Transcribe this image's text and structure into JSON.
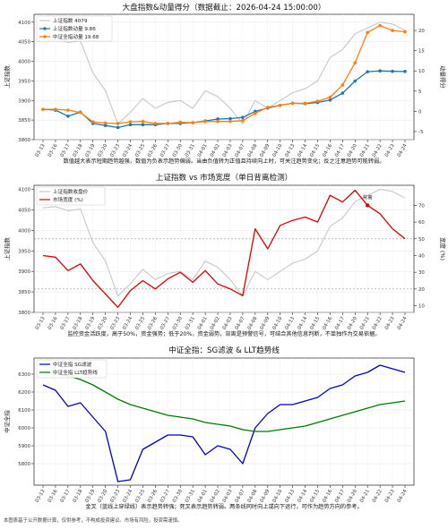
{
  "footer_note": "本图表基于公开数据计算，仅供参考，不构成投资建议。市场有风险，投资需谨慎。",
  "dates": [
    "03-13",
    "03-16",
    "03-17",
    "03-18",
    "03-19",
    "03-20",
    "03-23",
    "03-24",
    "03-25",
    "03-26",
    "03-27",
    "03-30",
    "03-31",
    "04-01",
    "04-02",
    "04-03",
    "04-07",
    "04-08",
    "04-09",
    "04-10",
    "04-13",
    "04-14",
    "04-15",
    "04-16",
    "04-17",
    "04-20",
    "04-21",
    "04-22",
    "04-23",
    "04-24"
  ],
  "colors": {
    "gray": "#c8c8c8",
    "blue": "#1f77b4",
    "orange": "#ff7f0e",
    "red": "#e00000",
    "navy": "#0000cc",
    "green": "#007a00"
  },
  "chart_data": [
    {
      "type": "line",
      "title": "大盘指数&动量得分（数据截止：2026-04-24 15:00:00）",
      "ylabel": "上证指数",
      "y2label": "动量得分",
      "caption": "数值越大表示短期趋势越强，数值为负表示趋势偏弱。当由负值转为正值且持续向上时，可关注趋势变化；反之注意趋势可能转弱。",
      "ylim": [
        3800,
        4120
      ],
      "yticks": [
        3800,
        3850,
        3900,
        3950,
        4000,
        4050,
        4100
      ],
      "y2lim": [
        -7,
        24
      ],
      "y2ticks": [
        -5,
        0,
        5,
        10,
        15,
        20
      ],
      "legend_position": "top-left",
      "series": [
        {
          "name": "上证指数 4079",
          "axis": "left",
          "color": "#c8c8c8",
          "values": [
            4055,
            4058,
            4048,
            4052,
            3970,
            3925,
            3840,
            3870,
            3905,
            3880,
            3895,
            3900,
            3880,
            3925,
            3910,
            3880,
            3840,
            3900,
            3880,
            3900,
            3920,
            3930,
            3950,
            4010,
            4030,
            4070,
            4085,
            4100,
            4095,
            4079
          ]
        },
        {
          "name": "上证指数动量 9.86",
          "axis": "right",
          "color": "#1f77b4",
          "values": [
            0.5,
            0.3,
            -1.2,
            -0.2,
            -3.0,
            -3.5,
            -4.0,
            -3.3,
            -3.3,
            -3.3,
            -3.0,
            -3.0,
            -2.8,
            -2.4,
            -1.9,
            -1.8,
            -1.5,
            0.0,
            0.8,
            1.5,
            2.0,
            1.9,
            2.2,
            2.8,
            4.5,
            7.5,
            9.8,
            10.0,
            9.9,
            9.86
          ]
        },
        {
          "name": "中证全指动量 19.68",
          "axis": "right",
          "color": "#ff7f0e",
          "values": [
            0.5,
            0.5,
            0.3,
            -0.3,
            -2.6,
            -2.9,
            -3.0,
            -2.6,
            -2.5,
            -3.0,
            -3.0,
            -2.7,
            -2.8,
            -2.5,
            -2.5,
            -2.5,
            -2.3,
            -0.5,
            1.0,
            1.5,
            2.0,
            2.0,
            2.5,
            3.5,
            6.5,
            12.0,
            19.5,
            21.2,
            20.0,
            19.68
          ]
        }
      ]
    },
    {
      "type": "line",
      "title": "上证指数 vs 市场宽度（单日背离检测）",
      "ylabel": "上证指数",
      "y2label": "宽度 (%)",
      "caption": "监控资金活跃度，高于50%，资金强势；低于20%，资金弱势。背离是预警信号，可结合其他信息判断，不单独作为交易依据。",
      "ylim": [
        3800,
        4110
      ],
      "yticks": [
        3800,
        3850,
        3900,
        3950,
        4000,
        4050,
        4100
      ],
      "y2lim": [
        6,
        82
      ],
      "y2ticks": [
        10,
        20,
        30,
        40,
        50,
        60,
        70
      ],
      "ref_lines": [
        20,
        50
      ],
      "legend_position": "top-left",
      "annotations": [
        {
          "label": "背离",
          "index": 26
        }
      ],
      "series": [
        {
          "name": "上证指数收盘价",
          "axis": "left",
          "color": "#c8c8c8",
          "values": [
            4055,
            4058,
            4048,
            4052,
            3970,
            3925,
            3840,
            3870,
            3905,
            3880,
            3895,
            3900,
            3880,
            3925,
            3910,
            3880,
            3840,
            3900,
            3880,
            3900,
            3920,
            3930,
            3950,
            4010,
            4030,
            4070,
            4085,
            4100,
            4095,
            4079
          ]
        },
        {
          "name": "市场宽度 (%)",
          "axis": "right",
          "color": "#e00000",
          "values": [
            40,
            39,
            31,
            35,
            25,
            17,
            9,
            19,
            25,
            20,
            26,
            30,
            24,
            31,
            23,
            20,
            16,
            56,
            44,
            58,
            61,
            63,
            60,
            76,
            72,
            79,
            70,
            65,
            56,
            50
          ]
        }
      ]
    },
    {
      "type": "line",
      "title": "中证全指：SG滤波 & LLT趋势线",
      "ylabel": "中证全指",
      "caption": "金叉（蓝线上穿绿线）表示趋势转强；死叉表示趋势转弱。两条线同时向上或向下运行，可作为趋势方向的参考。",
      "ylim": [
        5680,
        6390
      ],
      "yticks": [
        5800,
        5900,
        6000,
        6100,
        6200,
        6300
      ],
      "legend_position": "top-left",
      "series": [
        {
          "name": "中证全指 SG滤波",
          "axis": "left",
          "color": "#0000cc",
          "values": [
            6240,
            6210,
            6120,
            6140,
            6060,
            5980,
            5700,
            5710,
            5880,
            5920,
            5960,
            5960,
            5950,
            5850,
            5900,
            5880,
            5800,
            6000,
            6080,
            6130,
            6130,
            6150,
            6170,
            6220,
            6240,
            6290,
            6310,
            6350,
            6330,
            6310
          ]
        },
        {
          "name": "中证全指 LLT趋势线",
          "axis": "left",
          "color": "#007a00",
          "values": [
            6310,
            6300,
            6290,
            6270,
            6240,
            6200,
            6160,
            6130,
            6110,
            6090,
            6070,
            6060,
            6050,
            6030,
            6020,
            6010,
            5990,
            5980,
            5980,
            5990,
            6000,
            6010,
            6030,
            6050,
            6070,
            6090,
            6110,
            6130,
            6140,
            6150
          ]
        }
      ]
    }
  ]
}
